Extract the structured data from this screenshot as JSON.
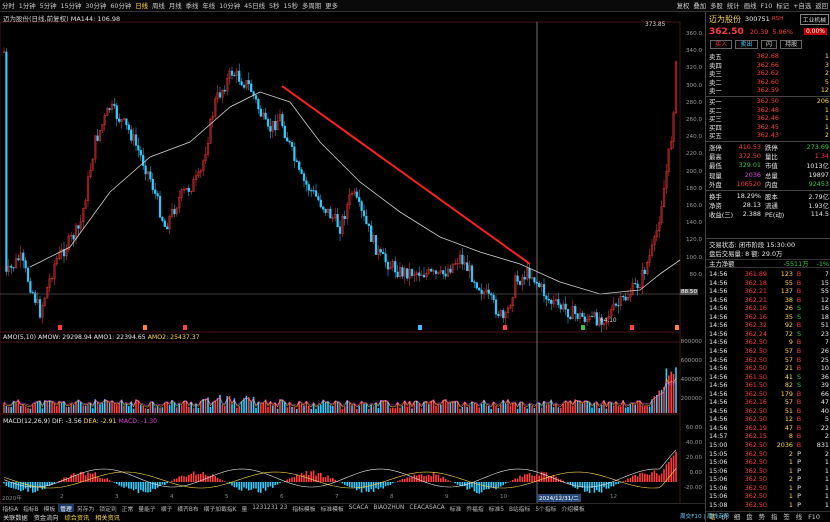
{
  "topbar": {
    "items": [
      "分时",
      "1分钟",
      "5分钟",
      "15分钟",
      "30分钟",
      "60分钟",
      "日线",
      "周线",
      "月线",
      "季线",
      "年线",
      "10分钟",
      "45日线",
      "5秒",
      "15秒",
      "多周期",
      "更多"
    ],
    "active": 6,
    "right": [
      "复权",
      "叠加",
      "多股",
      "统计",
      "画线",
      "F10",
      "标记",
      "+自选",
      "返回"
    ]
  },
  "chart": {
    "stock": "迈为股份(日线,前复权)",
    "ma_label": "MA144: 106.98",
    "right_axis": [
      "360.0",
      "340.0",
      "320.0",
      "300.0",
      "280.0",
      "260.0",
      "240.0",
      "220.0",
      "200.0",
      "180.0",
      "160.0",
      "140.0",
      "120.0",
      "100.0",
      "80.0"
    ],
    "high_mark": "373.85",
    "low_mark": "64.10",
    "cross_label": "88.50",
    "price_line": "88.50"
  },
  "amo": {
    "label": "AMO(5,10)",
    "amow_label": "AMOW: 29298.94",
    "amo1_label": "AMO1: 22394.65",
    "amo2_label": "AMO2: 25437.37",
    "axis": [
      "800000",
      "600000",
      "400000",
      "200000"
    ]
  },
  "macd": {
    "label": "MACD(12,26,9)",
    "dif_label": "DIF: -3.56",
    "dea_label": "DEA: -2.91",
    "macd_label": "MACD: -1.30",
    "axis": [
      "60.00",
      "40.00",
      "20.00",
      "0.00",
      "-20.00"
    ]
  },
  "xaxis": {
    "left": "2020年",
    "cursor": "2024/12/31/二",
    "labels": [
      "2",
      "3",
      "4",
      "5",
      "6",
      "7",
      "8",
      "9",
      "10",
      "11",
      "12"
    ]
  },
  "bottom_tabs": {
    "items": [
      "指标A",
      "指标B",
      "模板",
      "管理",
      "另存为",
      "锁定到",
      "正常",
      "量能子",
      "横子",
      "横齐B布",
      "横子加截指K",
      "量",
      "1231231 23",
      "指标模板",
      "标准模板",
      "SCACA",
      "BIAOZHUN",
      "CEACASACA",
      "标准",
      "乔福指",
      "标准5",
      "B站指标",
      "5个指标",
      "介绍模板"
    ],
    "active": 3
  },
  "bottom_tabs2": {
    "items": [
      "关联数据",
      "资金流向",
      "综合资讯",
      "相关资讯"
    ]
  },
  "status": {
    "text": "周交F10 | 周线走势"
  },
  "quote": {
    "name": "迈为股份",
    "code": "300751",
    "tag": "RSH",
    "industry": "工业机械",
    "price": "362.50",
    "change": "20.39",
    "pct": "5.96%",
    "weibi": "0.00%",
    "buttons": [
      "买入",
      "卖出",
      "闪",
      "持股"
    ],
    "asks": [
      {
        "l": "卖五",
        "p": "362.68",
        "v": "1"
      },
      {
        "l": "卖四",
        "p": "362.66",
        "v": "3"
      },
      {
        "l": "卖三",
        "p": "362.62",
        "v": "2"
      },
      {
        "l": "卖二",
        "p": "362.60",
        "v": "5"
      },
      {
        "l": "卖一",
        "p": "362.59",
        "v": "12"
      }
    ],
    "bids": [
      {
        "l": "买一",
        "p": "362.50",
        "v": "206"
      },
      {
        "l": "买二",
        "p": "362.48",
        "v": "1"
      },
      {
        "l": "买三",
        "p": "362.46",
        "v": "1"
      },
      {
        "l": "买四",
        "p": "362.45",
        "v": "1"
      },
      {
        "l": "买五",
        "p": "362.43",
        "v": "2"
      }
    ],
    "stats": [
      [
        "涨停",
        "410.53",
        "跌停",
        "273.69"
      ],
      [
        "最高",
        "372.50",
        "量比",
        "1.34"
      ],
      [
        "最低",
        "329.01",
        "市值",
        "1013亿"
      ],
      [
        "现量",
        "2036",
        "总量",
        "19897"
      ],
      [
        "外盘",
        "106520",
        "内盘",
        "92453"
      ]
    ],
    "stats2": [
      [
        "换手",
        "18.29%",
        "股本",
        "2.79亿"
      ],
      [
        "净资",
        "28.13",
        "流通",
        "1.93亿"
      ],
      [
        "收益(三)",
        "2.388",
        "PE(动)",
        "114.5"
      ]
    ],
    "trade_status": "交易状态: 闭市阶段 15:30:00",
    "after_trade": "盘后交易量: 8 额: 29.0万",
    "main_flow_label": "主力净额",
    "main_flow": "-5511万",
    "main_flow_pct": "-1%",
    "ticks": [
      [
        "14:56",
        "361.89",
        "123",
        "B",
        "7"
      ],
      [
        "14:56",
        "362.18",
        "55",
        "B",
        "15"
      ],
      [
        "14:56",
        "362.21",
        "137",
        "B",
        "55"
      ],
      [
        "14:56",
        "362.21",
        "38",
        "B",
        "12"
      ],
      [
        "14:56",
        "362.16",
        "26",
        "S",
        "16"
      ],
      [
        "14:56",
        "362.16",
        "35",
        "S",
        "18"
      ],
      [
        "14:56",
        "362.32",
        "92",
        "B",
        "51"
      ],
      [
        "14:56",
        "362.24",
        "72",
        "S",
        "23"
      ],
      [
        "14:56",
        "362.50",
        "9",
        "B",
        "7"
      ],
      [
        "14:56",
        "362.50",
        "57",
        "B",
        "26"
      ],
      [
        "14:56",
        "362.50",
        "57",
        "B",
        "25"
      ],
      [
        "14:56",
        "362.50",
        "21",
        "B",
        "10"
      ],
      [
        "14:56",
        "361.50",
        "41",
        "S",
        "36"
      ],
      [
        "14:56",
        "361.50",
        "82",
        "S",
        "39"
      ],
      [
        "14:56",
        "362.50",
        "179",
        "B",
        "66"
      ],
      [
        "14:56",
        "362.16",
        "57",
        "B",
        "47"
      ],
      [
        "14:56",
        "362.50",
        "51",
        "B",
        "40"
      ],
      [
        "14:56",
        "362.50",
        "12",
        "B",
        "5"
      ],
      [
        "14:56",
        "362.19",
        "47",
        "B",
        "22"
      ],
      [
        "14:57",
        "362.15",
        "8",
        "B",
        "2"
      ],
      [
        "15:00",
        "362.50",
        "2036",
        "B",
        "831"
      ],
      [
        "15:05",
        "362.50",
        "2",
        "P",
        "2"
      ],
      [
        "15:06",
        "362.50",
        "1",
        "P",
        "1"
      ],
      [
        "15:06",
        "362.50",
        "1",
        "P",
        "1"
      ],
      [
        "15:06",
        "362.50",
        "2",
        "P",
        "1"
      ],
      [
        "15:06",
        "362.50",
        "1",
        "P",
        "1"
      ],
      [
        "15:06",
        "362.50",
        "1",
        "P",
        "1"
      ],
      [
        "15:08",
        "362.50",
        "1",
        "P",
        "1"
      ]
    ],
    "tabs": [
      "笔",
      "价",
      "细",
      "盘",
      "势",
      "指",
      "签",
      "线",
      "F10"
    ]
  },
  "colors": {
    "up": "#ff3b3b",
    "down": "#33ccff",
    "ma": "#cccccc",
    "trend": "#ff2020"
  }
}
